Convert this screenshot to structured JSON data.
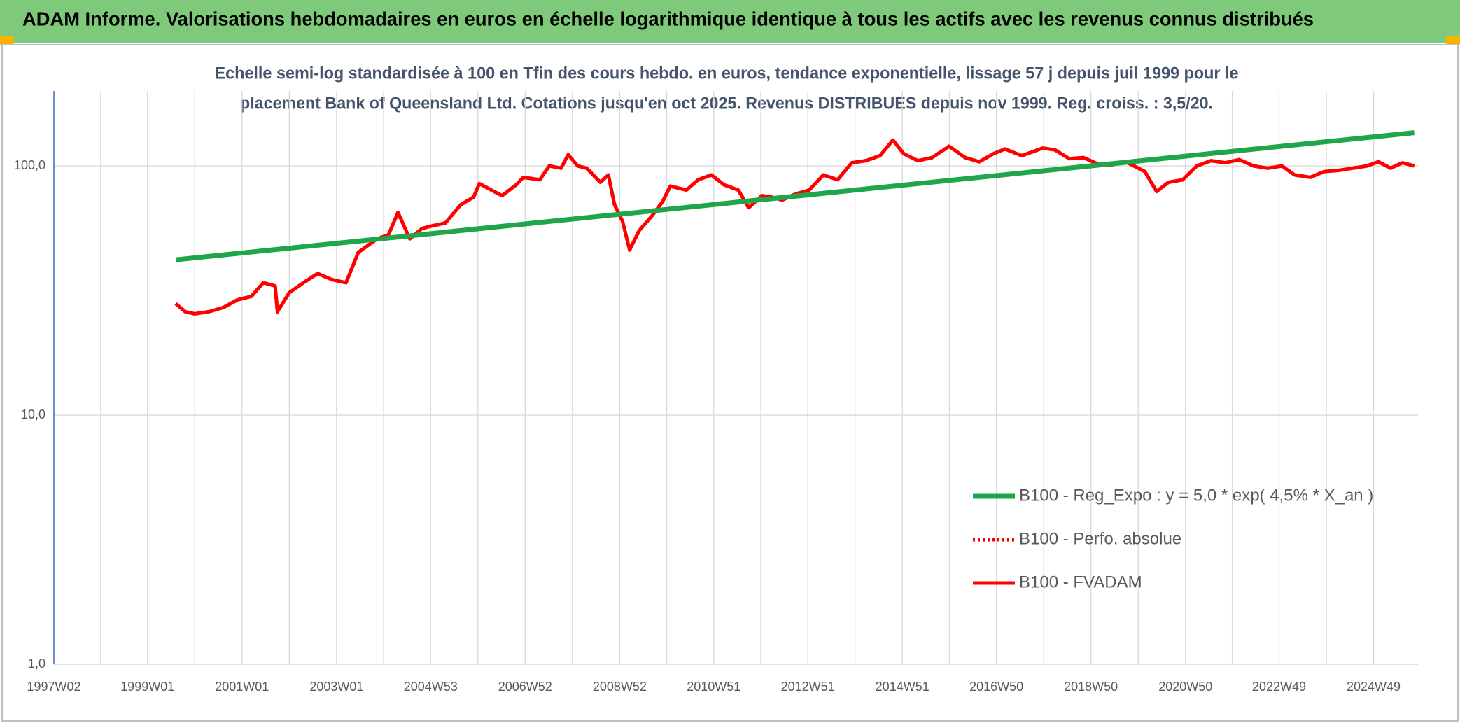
{
  "chart_data": {
    "type": "line",
    "title": "ADAM Informe. Valorisations hebdomadaires en euros en échelle logarithmique identique à tous les actifs avec les revenus connus distribués",
    "subtitle": [
      "Echelle semi-log standardisée à 100 en Tfin des cours hebdo. en euros, tendance exponentielle, lissage 57 j depuis juil 1999 pour le",
      "placement Bank of Queensland Ltd. Cotations jusqu'en oct 2025. Revenus DISTRIBUES depuis nov 1999. Reg. croiss. : 3,5/20."
    ],
    "log_y": true,
    "grid": true,
    "legend": "bottom-right",
    "xlim": [
      1997.02,
      2025.88
    ],
    "xticks": [
      {
        "value": 1997.02,
        "label": "1997W02"
      },
      {
        "value": 1999.0,
        "label": "1999W01"
      },
      {
        "value": 2001.0,
        "label": "2001W01"
      },
      {
        "value": 2003.0,
        "label": "2003W01"
      },
      {
        "value": 2004.99,
        "label": "2004W53"
      },
      {
        "value": 2006.99,
        "label": "2006W52"
      },
      {
        "value": 2008.99,
        "label": "2008W52"
      },
      {
        "value": 2010.98,
        "label": "2010W51"
      },
      {
        "value": 2012.97,
        "label": "2012W51"
      },
      {
        "value": 2014.97,
        "label": "2014W51"
      },
      {
        "value": 2016.96,
        "label": "2016W50"
      },
      {
        "value": 2018.96,
        "label": "2018W50"
      },
      {
        "value": 2020.96,
        "label": "2020W50"
      },
      {
        "value": 2022.94,
        "label": "2022W49"
      },
      {
        "value": 2024.94,
        "label": "2024W49"
      }
    ],
    "ylim": [
      1,
      200
    ],
    "yticks": [
      {
        "value": 1,
        "label": "1,0"
      },
      {
        "value": 10,
        "label": "10,0"
      },
      {
        "value": 100,
        "label": "100,0"
      }
    ],
    "series": [
      {
        "name": "B100 - Reg_Expo : y = 5,0 * exp( 4,5% *  X_an )",
        "color": "#1fa64a",
        "style": "solid",
        "x": [
          1999.6,
          2025.8
        ],
        "values": [
          42,
          136
        ]
      },
      {
        "name": "B100 - Perfo. absolue",
        "color": "#ff0000",
        "style": "dotted",
        "x": [
          1999.6,
          1999.8,
          2000.0,
          2000.3,
          2000.6,
          2000.9,
          2001.2,
          2001.45,
          2001.7,
          2001.75,
          2002.0,
          2002.3,
          2002.6,
          2002.9,
          2003.2,
          2003.46,
          2003.86,
          2004.1,
          2004.3,
          2004.55,
          2004.8,
          2004.94,
          2005.3,
          2005.63,
          2005.9,
          2006.02,
          2006.5,
          2006.8,
          2006.95,
          2007.3,
          2007.5,
          2007.75,
          2007.9,
          2008.1,
          2008.29,
          2008.58,
          2008.75,
          2008.88,
          2009.05,
          2009.2,
          2009.4,
          2009.67,
          2009.9,
          2010.06,
          2010.4,
          2010.65,
          2010.93,
          2011.2,
          2011.5,
          2011.72,
          2012.0,
          2012.2,
          2012.43,
          2012.7,
          2013.0,
          2013.3,
          2013.6,
          2013.9,
          2014.2,
          2014.5,
          2014.77,
          2015.0,
          2015.3,
          2015.6,
          2015.96,
          2016.3,
          2016.6,
          2016.9,
          2017.14,
          2017.5,
          2017.94,
          2018.2,
          2018.5,
          2018.8,
          2019.1,
          2019.4,
          2019.7,
          2020.1,
          2020.35,
          2020.6,
          2020.9,
          2021.2,
          2021.5,
          2021.8,
          2022.1,
          2022.4,
          2022.7,
          2023.0,
          2023.27,
          2023.6,
          2023.9,
          2024.2,
          2024.5,
          2024.8,
          2025.04,
          2025.3,
          2025.55,
          2025.8
        ],
        "values": [
          28,
          26,
          25.5,
          26,
          27,
          29,
          30,
          34,
          33,
          26,
          31,
          34,
          37,
          35,
          34,
          45,
          51,
          53,
          65,
          51,
          56,
          57,
          59,
          70,
          75,
          85,
          76,
          84,
          90,
          88,
          100,
          98,
          111,
          100,
          98,
          86,
          92,
          70,
          60,
          46,
          55,
          63,
          72,
          83,
          80,
          88,
          92,
          84,
          80,
          68,
          76,
          75,
          73,
          77,
          80,
          92,
          88,
          103,
          105,
          110,
          127,
          112,
          105,
          108,
          120,
          108,
          104,
          112,
          117,
          110,
          118,
          116,
          107,
          108,
          102,
          101,
          104,
          95,
          79,
          86,
          88,
          100,
          105,
          103,
          106,
          100,
          98,
          100,
          92,
          90,
          95,
          96,
          98,
          100,
          104,
          98,
          103,
          100
        ]
      },
      {
        "name": "B100 - FVADAM",
        "color": "#ff0000",
        "style": "solid",
        "x": [
          1999.6,
          1999.8,
          2000.0,
          2000.3,
          2000.6,
          2000.9,
          2001.2,
          2001.45,
          2001.7,
          2001.75,
          2002.0,
          2002.3,
          2002.6,
          2002.9,
          2003.2,
          2003.46,
          2003.86,
          2004.1,
          2004.3,
          2004.55,
          2004.8,
          2004.94,
          2005.3,
          2005.63,
          2005.9,
          2006.02,
          2006.5,
          2006.8,
          2006.95,
          2007.3,
          2007.5,
          2007.75,
          2007.9,
          2008.1,
          2008.29,
          2008.58,
          2008.75,
          2008.88,
          2009.05,
          2009.2,
          2009.4,
          2009.67,
          2009.9,
          2010.06,
          2010.4,
          2010.65,
          2010.93,
          2011.2,
          2011.5,
          2011.72,
          2012.0,
          2012.2,
          2012.43,
          2012.7,
          2013.0,
          2013.3,
          2013.6,
          2013.9,
          2014.2,
          2014.5,
          2014.77,
          2015.0,
          2015.3,
          2015.6,
          2015.96,
          2016.3,
          2016.6,
          2016.9,
          2017.14,
          2017.5,
          2017.94,
          2018.2,
          2018.5,
          2018.8,
          2019.1,
          2019.4,
          2019.7,
          2020.1,
          2020.35,
          2020.6,
          2020.9,
          2021.2,
          2021.5,
          2021.8,
          2022.1,
          2022.4,
          2022.7,
          2023.0,
          2023.27,
          2023.6,
          2023.9,
          2024.2,
          2024.5,
          2024.8,
          2025.04,
          2025.3,
          2025.55,
          2025.8
        ],
        "values": [
          28,
          26,
          25.5,
          26,
          27,
          29,
          30,
          34,
          33,
          26,
          31,
          34,
          37,
          35,
          34,
          45,
          51,
          53,
          65,
          51,
          56,
          57,
          59,
          70,
          75,
          85,
          76,
          84,
          90,
          88,
          100,
          98,
          111,
          100,
          98,
          86,
          92,
          70,
          60,
          46,
          55,
          63,
          72,
          83,
          80,
          88,
          92,
          84,
          80,
          68,
          76,
          75,
          73,
          77,
          80,
          92,
          88,
          103,
          105,
          110,
          127,
          112,
          105,
          108,
          120,
          108,
          104,
          112,
          117,
          110,
          118,
          116,
          107,
          108,
          102,
          101,
          104,
          95,
          79,
          86,
          88,
          100,
          105,
          103,
          106,
          100,
          98,
          100,
          92,
          90,
          95,
          96,
          98,
          100,
          104,
          98,
          103,
          100
        ]
      }
    ]
  }
}
